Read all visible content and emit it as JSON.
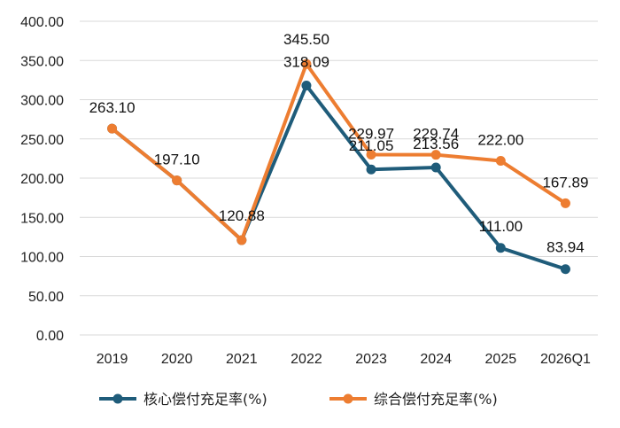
{
  "chart_data": {
    "type": "line",
    "categories": [
      "2019",
      "2020",
      "2021",
      "2022",
      "2023",
      "2024",
      "2025",
      "2026Q1"
    ],
    "series": [
      {
        "name": "核心偿付充足率(%)",
        "color": "#1F5C7A",
        "values": [
          263.1,
          197.1,
          120.88,
          318.09,
          211.05,
          213.56,
          111.0,
          83.94
        ],
        "labels": [
          "",
          "",
          "",
          "318.09",
          "211.05",
          "213.56",
          "111.00",
          "83.94"
        ]
      },
      {
        "name": "综合偿付充足率(%)",
        "color": "#ED7D31",
        "values": [
          263.1,
          197.1,
          120.88,
          345.5,
          229.97,
          229.74,
          222.0,
          167.89
        ],
        "labels": [
          "263.10",
          "197.10",
          "120.88",
          "345.50",
          "229.97",
          "229.74",
          "222.00",
          "167.89"
        ]
      }
    ],
    "ylim": [
      0,
      400
    ],
    "yticks": [
      "0.00",
      "50.00",
      "100.00",
      "150.00",
      "200.00",
      "250.00",
      "300.00",
      "350.00",
      "400.00"
    ],
    "ytick_values": [
      0,
      50,
      100,
      150,
      200,
      250,
      300,
      350,
      400
    ],
    "grid": true,
    "legend": "bottom",
    "title": "",
    "xlabel": "",
    "ylabel": ""
  }
}
